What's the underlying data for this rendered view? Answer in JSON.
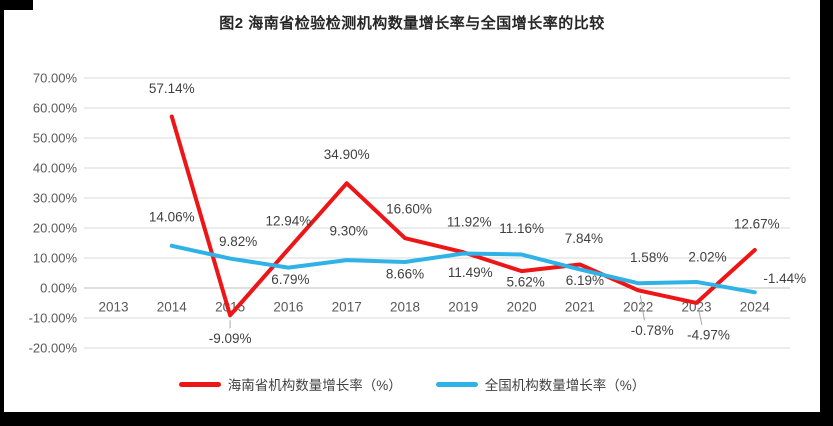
{
  "window": {
    "background": "#000000",
    "canvas_background": "#ffffff"
  },
  "chart_data": {
    "type": "line",
    "title": "图2 海南省检验检测机构数量增长率与全国增长率的比较",
    "categories": [
      "2013",
      "2014",
      "2015",
      "2016",
      "2017",
      "2018",
      "2019",
      "2020",
      "2021",
      "2022",
      "2023",
      "2024"
    ],
    "y_axis": {
      "min": -20,
      "max": 70,
      "step": 10,
      "tick_labels": [
        "70.00%",
        "60.00%",
        "50.00%",
        "40.00%",
        "30.00%",
        "20.00%",
        "10.00%",
        "0.00%",
        "-10.00%",
        "-20.00%"
      ]
    },
    "grid": true,
    "legend_position": "bottom",
    "colors": {
      "grid": "#d9d9d9",
      "axis": "#bfbfbf",
      "tick_text": "#595959",
      "label_text": "#404040",
      "leader": "#a6a6a6",
      "title_text": "#262626"
    },
    "series": [
      {
        "name": "海南省机构数量增长率（%）",
        "color": "#ED1515",
        "points": [
          {
            "year": "2014",
            "value": 57.14,
            "label": "57.14%",
            "dx": 0,
            "dy": -28
          },
          {
            "year": "2015",
            "value": -9.09,
            "label": "-9.09%",
            "dx": 0,
            "dy": 23,
            "leader": true
          },
          {
            "year": "2016",
            "value": 12.94,
            "label": "12.94%",
            "dx": 0,
            "dy": -28
          },
          {
            "year": "2017",
            "value": 34.9,
            "label": "34.90%",
            "dx": 0,
            "dy": -29
          },
          {
            "year": "2018",
            "value": 16.6,
            "label": "16.60%",
            "dx": 4,
            "dy": -29
          },
          {
            "year": "2019",
            "value": 11.92,
            "label": "11.92%",
            "dx": 6,
            "dy": -30
          },
          {
            "year": "2020",
            "value": 5.62,
            "label": "5.62%",
            "dx": 4,
            "dy": 11
          },
          {
            "year": "2021",
            "value": 7.84,
            "label": "7.84%",
            "dx": 4,
            "dy": -26
          },
          {
            "year": "2022",
            "value": -0.78,
            "label": "-0.78%",
            "dx": 14,
            "dy": 40,
            "leader": true
          },
          {
            "year": "2023",
            "value": -4.97,
            "label": "-4.97%",
            "dx": 12,
            "dy": 32,
            "leader": true
          },
          {
            "year": "2024",
            "value": 12.67,
            "label": "12.67%",
            "dx": 2,
            "dy": -26
          }
        ]
      },
      {
        "name": "全国机构数量增长率（%）",
        "color": "#2FB3E6",
        "points": [
          {
            "year": "2014",
            "value": 14.06,
            "label": "14.06%",
            "dx": 0,
            "dy": -29
          },
          {
            "year": "2015",
            "value": 9.82,
            "label": "9.82%",
            "dx": 8,
            "dy": -17
          },
          {
            "year": "2016",
            "value": 6.79,
            "label": "6.79%",
            "dx": 2,
            "dy": 12
          },
          {
            "year": "2017",
            "value": 9.3,
            "label": "9.30%",
            "dx": 2,
            "dy": -29
          },
          {
            "year": "2018",
            "value": 8.66,
            "label": "8.66%",
            "dx": 0,
            "dy": 12
          },
          {
            "year": "2019",
            "value": 11.49,
            "label": "11.49%",
            "dx": 7,
            "dy": 19
          },
          {
            "year": "2020",
            "value": 11.16,
            "label": "11.16%",
            "dx": 0,
            "dy": -26
          },
          {
            "year": "2021",
            "value": 6.19,
            "label": "6.19%",
            "dx": 5,
            "dy": 11
          },
          {
            "year": "2022",
            "value": 1.58,
            "label": "1.58%",
            "dx": 11,
            "dy": -26
          },
          {
            "year": "2023",
            "value": 2.02,
            "label": "2.02%",
            "dx": 11,
            "dy": -25
          },
          {
            "year": "2024",
            "value": -1.44,
            "label": "-1.44%",
            "dx": 30,
            "dy": -14
          }
        ]
      }
    ]
  }
}
